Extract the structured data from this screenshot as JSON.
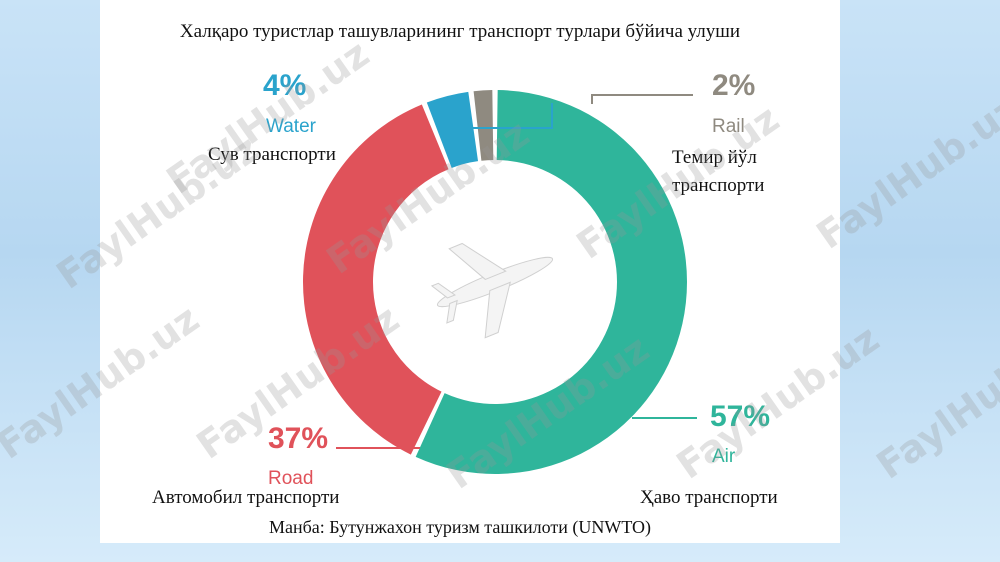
{
  "chart_data": {
    "type": "pie",
    "title": "Халқаро туристлар ташувларининг транспорт турлари бўйича улуши",
    "source": "Манба: Бутунжахон туризм ташкилоти (UNWTO)",
    "slices": [
      {
        "key": "air",
        "percent_label": "57%",
        "value": 57,
        "name": "Air",
        "uz_label": [
          "Ҳаво транспорти"
        ],
        "color": "#2fb59b"
      },
      {
        "key": "road",
        "percent_label": "37%",
        "value": 37,
        "name": "Road",
        "uz_label": [
          "Автомобил транспорти"
        ],
        "color": "#e0525a"
      },
      {
        "key": "water",
        "percent_label": "4%",
        "value": 4,
        "name": "Water",
        "uz_label": [
          "Сув транспорти"
        ],
        "color": "#2aa3cc"
      },
      {
        "key": "rail",
        "percent_label": "2%",
        "value": 2,
        "name": "Rail",
        "uz_label": [
          "Темир йўл",
          "транспорти"
        ],
        "color": "#8f8a80"
      }
    ],
    "center_icon": "airplane-icon",
    "percent_colors": {
      "air": "#2fb59b",
      "road": "#e0525a",
      "water": "#2aa3cc",
      "rail": "#8f8a80"
    }
  },
  "watermark": "FaylHub.uz"
}
